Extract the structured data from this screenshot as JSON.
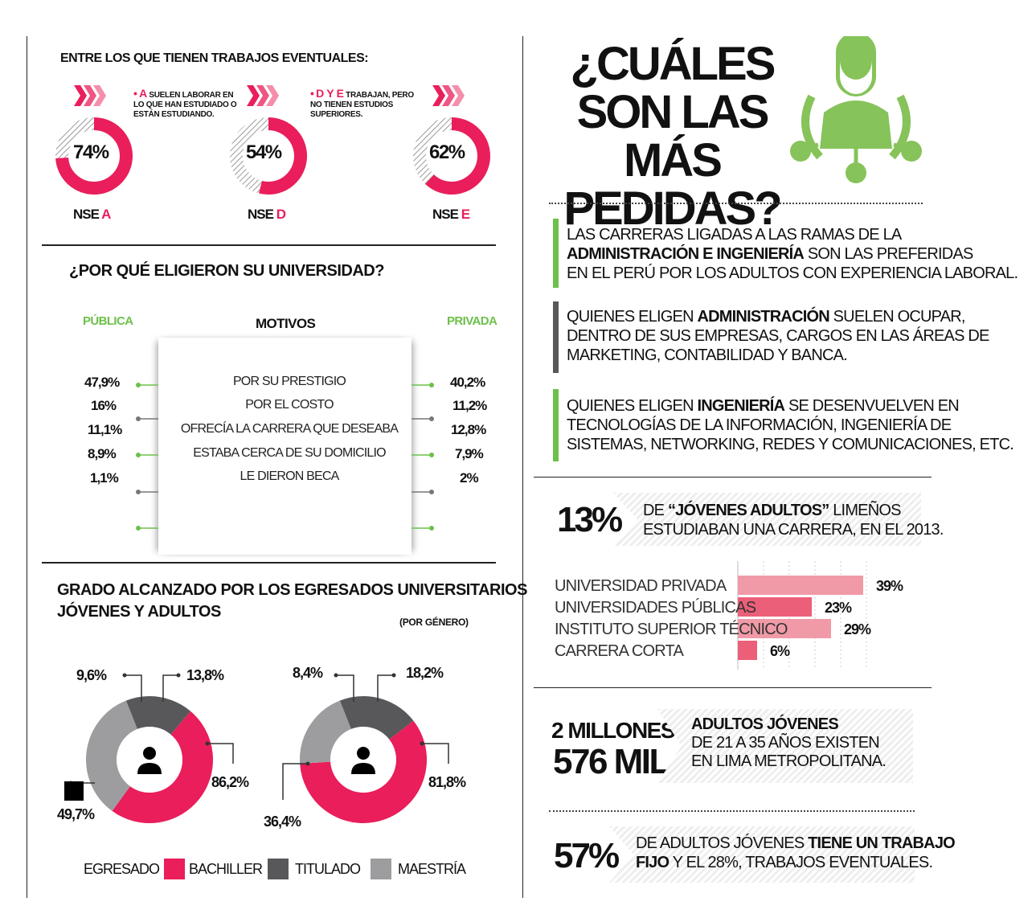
{
  "eventual": {
    "title": "ENTRE LOS QUE TIENEN TRABAJOS EVENTUALES:",
    "note_a_letter": "A",
    "note_a": "SUELEN LABORAR EN LO QUE HAN ESTUDIADO O ESTÁN ESTUDIANDO.",
    "note_de_letters": "D Y E",
    "note_de": "TRABAJAN, PERO NO TIENEN ESTUDIOS SUPERIORES.",
    "donuts": [
      {
        "pct": "74%",
        "value": 74,
        "nse_prefix": "NSE",
        "nse_letter": "A"
      },
      {
        "pct": "54%",
        "value": 54,
        "nse_prefix": "NSE",
        "nse_letter": "D"
      },
      {
        "pct": "62%",
        "value": 62,
        "nse_prefix": "NSE",
        "nse_letter": "E"
      }
    ]
  },
  "university": {
    "title": "¿POR QUÉ ELIGIERON SU UNIVERSIDAD?",
    "col_public": "PÚBLICA",
    "col_motives": "MOTIVOS",
    "col_private": "PRIVADA",
    "rows": [
      {
        "public": "47,9%",
        "motive": "POR SU PRESTIGIO",
        "private": "40,2%"
      },
      {
        "public": "16%",
        "motive": "POR EL COSTO",
        "private": "11,2%"
      },
      {
        "public": "11,1%",
        "motive": "OFRECÍA LA CARRERA QUE DESEABA",
        "private": "12,8%"
      },
      {
        "public": "8,9%",
        "motive": "ESTABA CERCA DE SU DOMICILIO",
        "private": "7,9%"
      },
      {
        "public": "1,1%",
        "motive": "LE DIERON BECA",
        "private": "2%"
      }
    ]
  },
  "degree": {
    "title_line1": "GRADO ALCANZADO POR LOS EGRESADOS UNIVERSITARIOS",
    "title_line2": "JÓVENES Y ADULTOS",
    "subtitle": "(POR GÉNERO)",
    "legend": {
      "egresado": "EGRESADO",
      "bachiller": "BACHILLER",
      "titulado": "TITULADO",
      "maestria": "MAESTRÍA"
    },
    "colors": {
      "bachiller": "#e91e5a",
      "titulado": "#58585b",
      "maestria": "#9d9d9f",
      "egresado": "#000000"
    },
    "female": {
      "labels": {
        "bachiller": "86,2%",
        "titulado": "13,8%",
        "maestria": "9,6%",
        "egresado": "49,7%"
      }
    },
    "male": {
      "labels": {
        "bachiller": "81,8%",
        "titulado": "18,2%",
        "maestria": "8,4%",
        "egresado": "36,4%"
      }
    }
  },
  "headline": {
    "line1": "¿CUÁLES",
    "line2": "SON LAS MÁS",
    "line3": "PEDIDAS?"
  },
  "careers": {
    "p1_a": "LAS CARRERAS LIGADAS A LAS RAMAS DE LA",
    "p1_bold": "ADMINISTRACIÓN E INGENIERÍA",
    "p1_b": "SON LAS PREFERIDAS",
    "p1_c": "EN EL PERÚ POR LOS ADULTOS CON EXPERIENCIA LABORAL.",
    "p2_a": "QUIENES ELIGEN",
    "p2_bold": "ADMINISTRACIÓN",
    "p2_b": "SUELEN OCUPAR,",
    "p2_c": "DENTRO DE SUS EMPRESAS, CARGOS EN LAS ÁREAS DE",
    "p2_d": "MARKETING, CONTABILIDAD Y BANCA.",
    "p3_a": "QUIENES ELIGEN",
    "p3_bold": "INGENIERÍA",
    "p3_b": "SE DESENVUELVEN EN",
    "p3_c": "TECNOLOGÍAS DE LA INFORMACIÓN, INGENIERÍA DE",
    "p3_d": "SISTEMAS, NETWORKING, REDES Y COMUNICACIONES, ETC."
  },
  "stat13": {
    "big": "13%",
    "text_a": "DE",
    "text_bold": "“JÓVENES ADULTOS”",
    "text_b": "LIMEÑOS",
    "text_c": "ESTUDIABAN UNA CARRERA, EN EL 2013."
  },
  "chart_data": {
    "type": "bar",
    "categories": [
      "UNIVERSIDAD PRIVADA",
      "UNIVERSIDADES PÚBLICAS",
      "INSTITUTO SUPERIOR TÉCNICO",
      "CARRERA CORTA"
    ],
    "values": [
      39,
      23,
      29,
      6
    ],
    "value_labels": [
      "39%",
      "23%",
      "29%",
      "6%"
    ],
    "colors": [
      "#f19aa7",
      "#ec5f78",
      "#f19aa7",
      "#ec5f78"
    ],
    "xlim": [
      0,
      40
    ]
  },
  "stat_millions": {
    "big1": "2 MILLONES",
    "big2": "576 MIL",
    "text_bold": "ADULTOS JÓVENES",
    "text_b": "DE 21 A 35 AÑOS EXISTEN",
    "text_c": "EN LIMA METROPOLITANA."
  },
  "stat57": {
    "big": "57%",
    "text_a": "DE ADULTOS JÓVENES",
    "text_bold1": "TIENE UN TRABAJO",
    "text_bold2": "FIJO",
    "text_b": "Y EL 28%, TRABAJOS EVENTUALES."
  }
}
